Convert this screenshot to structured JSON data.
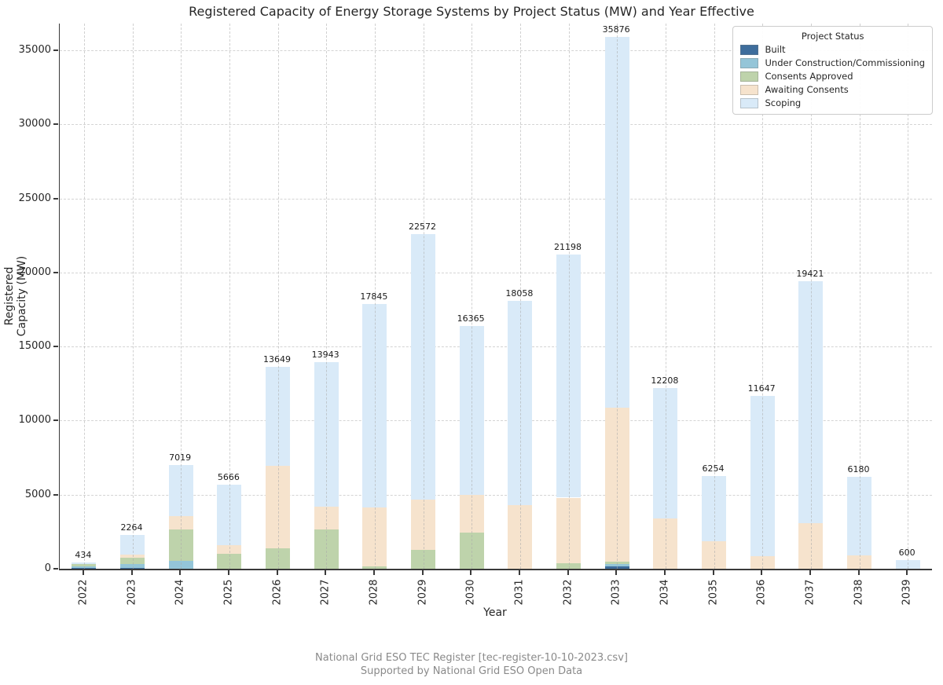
{
  "title": "Registered Capacity of Energy Storage Systems by Project Status (MW) and Year Effective",
  "footer": {
    "line1": "National Grid ESO TEC Register [tec-register-10-10-2023.csv]",
    "line2": "Supported by National Grid ESO Open Data"
  },
  "chart_data": {
    "type": "bar",
    "stacked": true,
    "title": "Registered Capacity of Energy Storage Systems by Project Status (MW) and Year Effective",
    "xlabel": "Year",
    "ylabel": "Registered Capacity (MW)",
    "ylim": [
      0,
      36800
    ],
    "yticks": [
      0,
      5000,
      10000,
      15000,
      20000,
      25000,
      30000,
      35000
    ],
    "grid": true,
    "legend": {
      "title": "Project Status",
      "position": "upper right"
    },
    "categories": [
      "2022",
      "2023",
      "2024",
      "2025",
      "2026",
      "2027",
      "2028",
      "2029",
      "2030",
      "2031",
      "2032",
      "2033",
      "2034",
      "2035",
      "2036",
      "2037",
      "2038",
      "2039"
    ],
    "series": [
      {
        "name": "Built",
        "color": "#3e6d9c",
        "values": [
          40,
          60,
          0,
          0,
          0,
          0,
          0,
          0,
          0,
          0,
          0,
          180,
          0,
          0,
          0,
          0,
          0,
          0
        ]
      },
      {
        "name": "Under Construction/Commissioning",
        "color": "#94c5d8",
        "values": [
          110,
          280,
          505,
          0,
          0,
          0,
          0,
          0,
          0,
          0,
          0,
          150,
          0,
          0,
          0,
          0,
          0,
          0
        ]
      },
      {
        "name": "Consents Approved",
        "color": "#bed3ab",
        "values": [
          170,
          380,
          2170,
          1000,
          1360,
          2650,
          150,
          1250,
          2450,
          0,
          350,
          170,
          0,
          0,
          0,
          0,
          0,
          0
        ]
      },
      {
        "name": "Awaiting Consents",
        "color": "#f6e3cd",
        "values": [
          0,
          210,
          870,
          600,
          5580,
          1530,
          4000,
          3400,
          2550,
          4300,
          4450,
          10384,
          3400,
          1850,
          850,
          3050,
          880,
          0
        ]
      },
      {
        "name": "Scoping",
        "color": "#d9eaf8",
        "values": [
          114,
          1334,
          3474,
          4066,
          6709,
          9763,
          13695,
          17922,
          11365,
          13758,
          16398,
          24992,
          8808,
          4404,
          10797,
          16371,
          5300,
          600
        ]
      }
    ],
    "totals": [
      434,
      2264,
      7019,
      5666,
      13649,
      13943,
      17845,
      22572,
      16365,
      18058,
      21198,
      35876,
      12208,
      6254,
      11647,
      19421,
      6180,
      600
    ]
  }
}
